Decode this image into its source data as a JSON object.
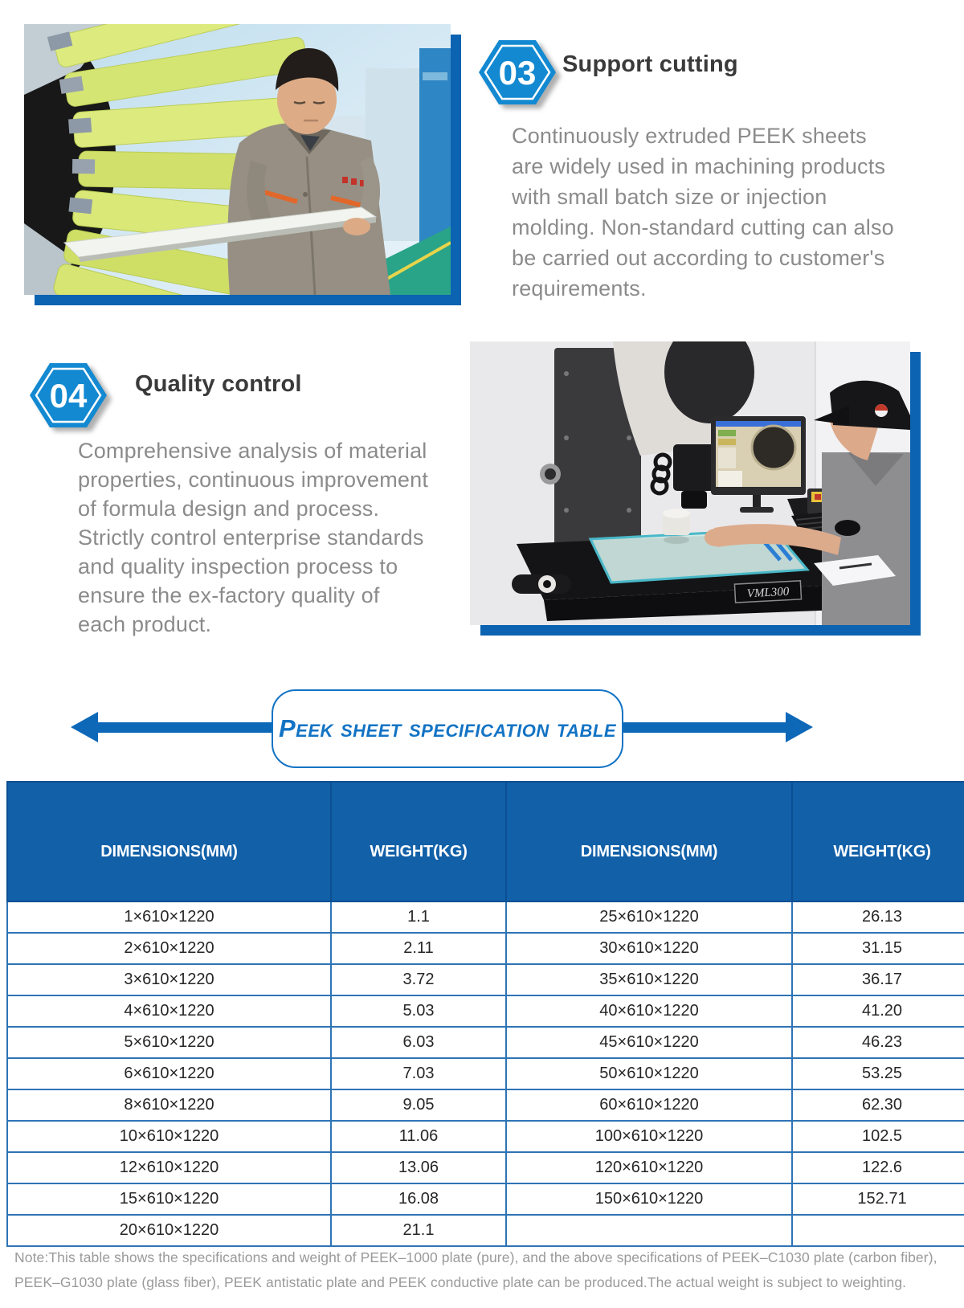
{
  "accent_colors": {
    "hex_badge_blue": "#1389d1",
    "table_header_blue": "#1160a8",
    "row_border_blue": "#2e74b5",
    "arrow_blue": "#0d68b8",
    "banner_blue": "#1273c4",
    "photo_shadow_blue": "#0b63b1"
  },
  "sections": {
    "cutting": {
      "number": "03",
      "title": "Support cutting",
      "body_lines": [
        "Continuously extruded PEEK sheets",
        "are widely used in machining products",
        "with small batch size or injection",
        "molding. Non-standard cutting can also",
        "be carried out according to customer's",
        "requirements."
      ]
    },
    "quality": {
      "number": "04",
      "title": "Quality control",
      "body_lines": [
        "Comprehensive analysis of material",
        "properties, continuous improvement",
        "of formula design and process.",
        "Strictly control enterprise standards",
        "and quality inspection process to",
        "ensure the ex-factory quality of",
        "each product."
      ]
    }
  },
  "banner": {
    "label": "Peek sheet specification table"
  },
  "table": {
    "headers": [
      "DIMENSIONS(MM)",
      "WEIGHT(KG)",
      "DIMENSIONS(MM)",
      "WEIGHT(KG)"
    ],
    "rows": [
      [
        "1×610×1220",
        "1.1",
        "25×610×1220",
        "26.13"
      ],
      [
        "2×610×1220",
        "2.11",
        "30×610×1220",
        "31.15"
      ],
      [
        "3×610×1220",
        "3.72",
        "35×610×1220",
        "36.17"
      ],
      [
        "4×610×1220",
        "5.03",
        "40×610×1220",
        "41.20"
      ],
      [
        "5×610×1220",
        "6.03",
        "45×610×1220",
        "46.23"
      ],
      [
        "6×610×1220",
        "7.03",
        "50×610×1220",
        "53.25"
      ],
      [
        "8×610×1220",
        "9.05",
        "60×610×1220",
        "62.30"
      ],
      [
        "10×610×1220",
        "11.06",
        "100×610×1220",
        "102.5"
      ],
      [
        "12×610×1220",
        "13.06",
        "120×610×1220",
        "122.6"
      ],
      [
        "15×610×1220",
        "16.08",
        "150×610×1220",
        "152.71"
      ],
      [
        "20×610×1220",
        "21.1",
        "",
        ""
      ]
    ]
  },
  "note": "Note:This table shows the specifications and weight of PEEK–1000 plate (pure), and the above specifications of PEEK–C1030 plate (carbon fiber), PEEK–G1030 plate (glass fiber), PEEK antistatic plate and PEEK conductive plate can be produced.The actual weight is subject to weighting.",
  "photos": {
    "machine_label": "VML300"
  }
}
